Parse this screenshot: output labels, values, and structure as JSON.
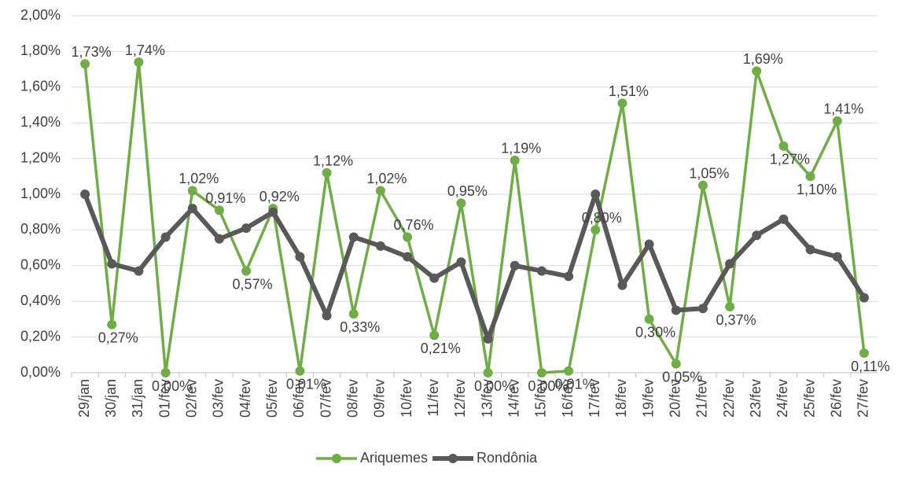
{
  "chart_data": {
    "type": "line",
    "categories": [
      "29/jan",
      "30/jan",
      "31/jan",
      "01/fev",
      "02/fev",
      "03/fev",
      "04/fev",
      "05/fev",
      "06/fev",
      "07/fev",
      "08/fev",
      "09/fev",
      "10/fev",
      "11/fev",
      "12/fev",
      "13/fev",
      "14/fev",
      "15/fev",
      "16/fev",
      "17/fev",
      "18/fev",
      "19/fev",
      "20/fev",
      "21/fev",
      "22/fev",
      "23/fev",
      "24/fev",
      "25/fev",
      "26/fev",
      "27/fev"
    ],
    "series": [
      {
        "name": "Ariquemes",
        "color": "#70ad47",
        "values": [
          1.73,
          0.27,
          1.74,
          0.0,
          1.02,
          0.91,
          0.57,
          0.92,
          0.01,
          1.12,
          0.33,
          1.02,
          0.76,
          0.21,
          0.95,
          0.0,
          1.19,
          0.0,
          0.01,
          0.8,
          1.51,
          0.3,
          0.05,
          1.05,
          0.37,
          1.69,
          1.27,
          1.1,
          1.41,
          0.11
        ],
        "value_labels": [
          "1,73%",
          "0,27%",
          "1,74%",
          "0,00%",
          "1,02%",
          "0,91%",
          "0,57%",
          "0,92%",
          "0,01%",
          "1,12%",
          "0,33%",
          "1,02%",
          "0,76%",
          "0,21%",
          "0,95%",
          "0,00%",
          "1,19%",
          "0,00%",
          "0,01%",
          "0,80%",
          "1,51%",
          "0,30%",
          "0,05%",
          "1,05%",
          "0,37%",
          "1,69%",
          "1,27%",
          "1,10%",
          "1,41%",
          "0,11%"
        ]
      },
      {
        "name": "Rondônia",
        "color": "#595959",
        "values": [
          1.0,
          0.61,
          0.57,
          0.76,
          0.92,
          0.75,
          0.81,
          0.9,
          0.65,
          0.32,
          0.76,
          0.71,
          0.65,
          0.53,
          0.62,
          0.19,
          0.6,
          0.57,
          0.54,
          1.0,
          0.49,
          0.72,
          0.35,
          0.36,
          0.61,
          0.77,
          0.86,
          0.69,
          0.65,
          0.42
        ]
      }
    ],
    "ylim": [
      0,
      2
    ],
    "yticks": [
      {
        "value": 0,
        "label": "0,00%"
      },
      {
        "value": 0.2,
        "label": "0,20%"
      },
      {
        "value": 0.4,
        "label": "0,40%"
      },
      {
        "value": 0.6,
        "label": "0,60%"
      },
      {
        "value": 0.8,
        "label": "0,80%"
      },
      {
        "value": 1.0,
        "label": "1,00%"
      },
      {
        "value": 1.2,
        "label": "1,20%"
      },
      {
        "value": 1.4,
        "label": "1,40%"
      },
      {
        "value": 1.6,
        "label": "1,60%"
      },
      {
        "value": 1.8,
        "label": "1,80%"
      },
      {
        "value": 2.0,
        "label": "2,00%"
      }
    ],
    "grid": true,
    "legend": "bottom"
  }
}
